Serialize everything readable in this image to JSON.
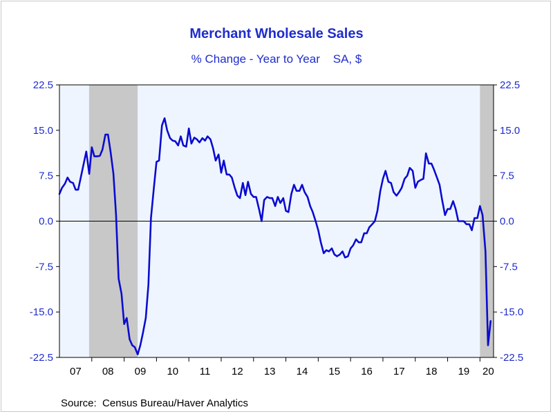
{
  "chart_data": {
    "type": "line",
    "title": "Merchant Wholesale Sales",
    "subtitle": "% Change - Year to Year    SA, $",
    "source": "Source:  Census Bureau/Haver Analytics",
    "xlabel": "",
    "ylabel": "",
    "ylim": [
      -22.5,
      22.5
    ],
    "yticks": [
      22.5,
      15.0,
      7.5,
      0.0,
      -7.5,
      -15.0,
      -22.5
    ],
    "ytick_labels": [
      "22.5",
      "15.0",
      "7.5",
      "0.0",
      "-7.5",
      "-15.0",
      "-22.5"
    ],
    "x_range": [
      2007.0,
      2020.42
    ],
    "x_tick_labels": [
      "07",
      "08",
      "09",
      "10",
      "11",
      "12",
      "13",
      "14",
      "15",
      "16",
      "17",
      "18",
      "19",
      "20"
    ],
    "zero_line": true,
    "legend": "none",
    "recessions": [
      {
        "start": 2007.917,
        "end": 2009.417
      },
      {
        "start": 2020.0,
        "end": 2020.42
      }
    ],
    "colors": {
      "line": "#0b0bd0",
      "text": "#1f2ccc",
      "plot_bg": "#eef5ff",
      "recession": "#c8c8c8"
    },
    "series": [
      {
        "x": [
          2007.0,
          2007.08,
          2007.17,
          2007.25,
          2007.33,
          2007.42,
          2007.5,
          2007.58,
          2007.67,
          2007.75,
          2007.83,
          2007.92,
          2008.0,
          2008.08,
          2008.17,
          2008.25,
          2008.33,
          2008.42,
          2008.5,
          2008.58,
          2008.67,
          2008.75,
          2008.83,
          2008.92,
          2009.0,
          2009.08,
          2009.17,
          2009.25,
          2009.33,
          2009.42,
          2009.5,
          2009.58,
          2009.67,
          2009.75,
          2009.83,
          2009.92,
          2010.0,
          2010.08,
          2010.17,
          2010.25,
          2010.33,
          2010.42,
          2010.5,
          2010.58,
          2010.67,
          2010.75,
          2010.83,
          2010.92,
          2011.0,
          2011.08,
          2011.17,
          2011.25,
          2011.33,
          2011.42,
          2011.5,
          2011.58,
          2011.67,
          2011.75,
          2011.83,
          2011.92,
          2012.0,
          2012.08,
          2012.17,
          2012.25,
          2012.33,
          2012.42,
          2012.5,
          2012.58,
          2012.67,
          2012.75,
          2012.83,
          2012.92,
          2013.0,
          2013.08,
          2013.17,
          2013.25,
          2013.33,
          2013.42,
          2013.5,
          2013.58,
          2013.67,
          2013.75,
          2013.83,
          2013.92,
          2014.0,
          2014.08,
          2014.17,
          2014.25,
          2014.33,
          2014.42,
          2014.5,
          2014.58,
          2014.67,
          2014.75,
          2014.83,
          2014.92,
          2015.0,
          2015.08,
          2015.17,
          2015.25,
          2015.33,
          2015.42,
          2015.5,
          2015.58,
          2015.67,
          2015.75,
          2015.83,
          2015.92,
          2016.0,
          2016.08,
          2016.17,
          2016.25,
          2016.33,
          2016.42,
          2016.5,
          2016.58,
          2016.67,
          2016.75,
          2016.83,
          2016.92,
          2017.0,
          2017.08,
          2017.17,
          2017.25,
          2017.33,
          2017.42,
          2017.5,
          2017.58,
          2017.67,
          2017.75,
          2017.83,
          2017.92,
          2018.0,
          2018.08,
          2018.17,
          2018.25,
          2018.33,
          2018.42,
          2018.5,
          2018.58,
          2018.67,
          2018.75,
          2018.83,
          2018.92,
          2019.0,
          2019.08,
          2019.17,
          2019.25,
          2019.33,
          2019.42,
          2019.5,
          2019.58,
          2019.67,
          2019.75,
          2019.83,
          2019.92,
          2020.0,
          2020.08,
          2020.17,
          2020.25,
          2020.33
        ],
        "values": [
          4.5,
          5.5,
          6.2,
          7.2,
          6.5,
          6.3,
          5.2,
          5.2,
          7.5,
          9.5,
          11.5,
          7.8,
          12.2,
          10.7,
          10.7,
          10.8,
          11.8,
          14.3,
          14.3,
          11.5,
          7.8,
          1.0,
          -9.5,
          -12.0,
          -17.0,
          -16.0,
          -19.5,
          -20.5,
          -20.8,
          -22.0,
          -20.5,
          -18.5,
          -16.0,
          -10.5,
          0.5,
          5.5,
          9.8,
          10.0,
          15.8,
          17.0,
          15.0,
          13.7,
          13.3,
          13.2,
          12.5,
          14.0,
          12.5,
          12.3,
          15.3,
          12.8,
          13.8,
          13.5,
          13.0,
          13.7,
          13.3,
          14.0,
          13.5,
          12.0,
          10.0,
          11.0,
          8.0,
          10.0,
          7.7,
          7.7,
          7.2,
          5.5,
          4.2,
          3.8,
          6.3,
          4.3,
          6.5,
          4.5,
          4.0,
          4.0,
          2.0,
          0.0,
          3.5,
          4.0,
          3.8,
          3.8,
          2.5,
          4.0,
          3.0,
          3.8,
          1.7,
          1.5,
          4.5,
          6.0,
          5.0,
          5.0,
          6.0,
          4.8,
          4.0,
          2.5,
          1.5,
          0.0,
          -1.5,
          -3.5,
          -5.3,
          -4.8,
          -5.0,
          -4.5,
          -5.5,
          -5.8,
          -5.5,
          -5.0,
          -6.0,
          -5.8,
          -4.5,
          -4.0,
          -3.0,
          -3.5,
          -3.5,
          -2.0,
          -2.0,
          -1.0,
          -0.5,
          0.0,
          1.7,
          5.0,
          7.0,
          8.3,
          6.5,
          6.3,
          4.8,
          4.2,
          4.8,
          5.5,
          7.0,
          7.5,
          8.8,
          8.3,
          5.5,
          6.5,
          6.8,
          7.0,
          11.2,
          9.5,
          9.5,
          8.5,
          7.2,
          6.0,
          3.5,
          1.0,
          2.0,
          2.0,
          3.3,
          2.0,
          0.0,
          0.0,
          0.0,
          -0.5,
          -0.5,
          -1.5,
          0.5,
          0.5,
          2.5,
          1.0,
          -5.0,
          -20.5,
          -16.5
        ]
      }
    ]
  }
}
